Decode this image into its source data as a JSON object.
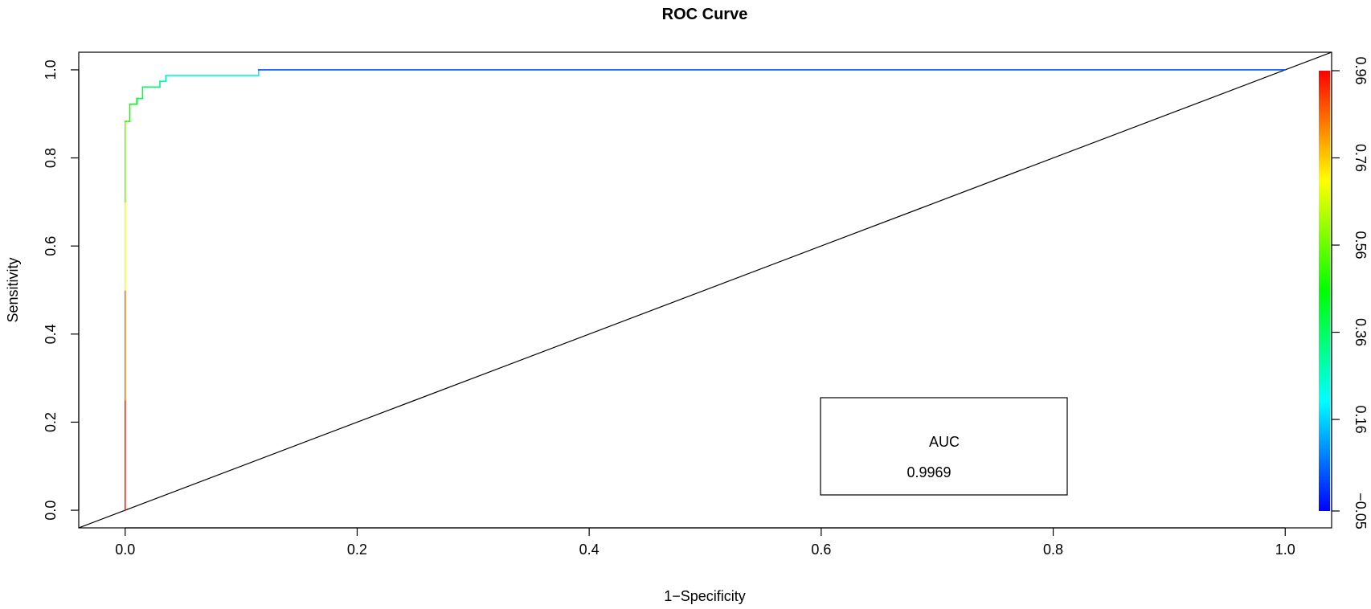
{
  "chart_data": {
    "type": "line",
    "title": "ROC Curve",
    "xlabel": "1−Specificity",
    "ylabel": "Sensitivity",
    "xlim": [
      -0.04,
      1.04
    ],
    "ylim": [
      -0.04,
      1.04
    ],
    "x_ticks": [
      0.0,
      0.2,
      0.4,
      0.6,
      0.8,
      1.0
    ],
    "x_tick_labels": [
      "0.0",
      "0.2",
      "0.4",
      "0.6",
      "0.8",
      "1.0"
    ],
    "y_ticks": [
      0.0,
      0.2,
      0.4,
      0.6,
      0.8,
      1.0
    ],
    "y_tick_labels": [
      "0.0",
      "0.2",
      "0.4",
      "0.6",
      "0.8",
      "1.0"
    ],
    "series": [
      {
        "name": "ROC",
        "x": [
          0.0,
          0.0,
          0.0,
          0.0,
          0.0,
          0.004,
          0.004,
          0.01,
          0.01,
          0.015,
          0.015,
          0.03,
          0.03,
          0.035,
          0.035,
          0.115,
          0.115,
          1.0
        ],
        "y": [
          0.0,
          0.25,
          0.5,
          0.7,
          0.883,
          0.883,
          0.922,
          0.922,
          0.935,
          0.935,
          0.961,
          0.961,
          0.974,
          0.974,
          0.987,
          0.987,
          1.0,
          1.0
        ],
        "threshold": [
          0.96,
          0.9,
          0.8,
          0.62,
          0.5,
          0.5,
          0.44,
          0.44,
          0.4,
          0.4,
          0.36,
          0.36,
          0.3,
          0.3,
          0.26,
          0.26,
          0.12,
          -0.05
        ]
      },
      {
        "name": "chance-diagonal",
        "x": [
          -0.04,
          1.04
        ],
        "y": [
          -0.04,
          1.04
        ]
      }
    ],
    "legend": {
      "title": "AUC",
      "value": "0.9969",
      "placement": "bottom-right"
    },
    "colorbar": {
      "range": [
        -0.05,
        0.96
      ],
      "ticks": [
        -0.05,
        0.16,
        0.36,
        0.56,
        0.76,
        0.96
      ],
      "tick_labels": [
        "−0.05",
        "0.16",
        "0.36",
        "0.56",
        "0.76",
        "0.96"
      ],
      "colors": [
        "#0000ff",
        "#00ffff",
        "#00ff00",
        "#ffff00",
        "#ff0000"
      ],
      "placement": "right"
    },
    "diagonal_color": "#000000"
  }
}
